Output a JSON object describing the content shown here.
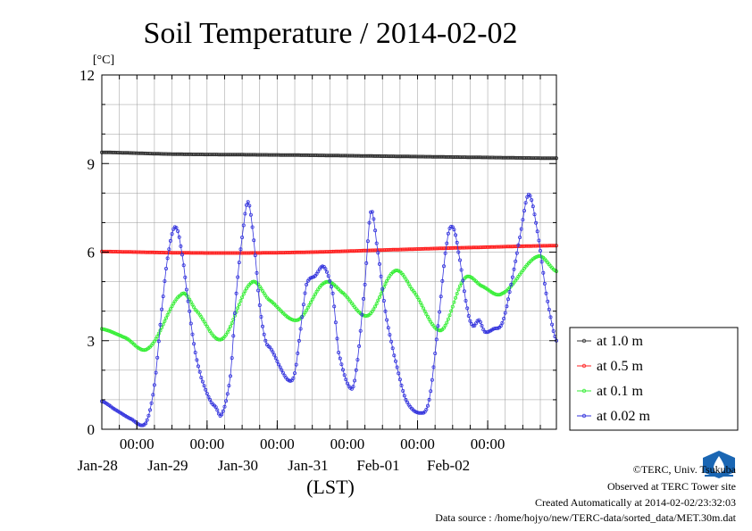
{
  "chart_data": {
    "type": "line",
    "title": "Soil Temperature / 2014-02-02",
    "xlabel": "(LST)",
    "ylabel": "[°C]",
    "ylim": [
      0,
      12
    ],
    "yticks": [
      "0",
      "3",
      "6",
      "9",
      "12"
    ],
    "xlim": [
      "2014-01-27 12:00",
      "2014-02-02 23:30"
    ],
    "xticks": [
      {
        "time": "2014-01-28 00:00",
        "label": "00:00",
        "date": "Jan-28"
      },
      {
        "time": "2014-01-29 00:00",
        "label": "00:00",
        "date": "Jan-29"
      },
      {
        "time": "2014-01-30 00:00",
        "label": "00:00",
        "date": "Jan-30"
      },
      {
        "time": "2014-01-31 00:00",
        "label": "00:00",
        "date": "Jan-31"
      },
      {
        "time": "2014-02-01 00:00",
        "label": "00:00",
        "date": "Feb-01"
      },
      {
        "time": "2014-02-02 00:00",
        "label": "00:00",
        "date": "Feb-02"
      }
    ],
    "grid": true,
    "legend_position": "right",
    "series": [
      {
        "name": "at 1.0 m",
        "color": "#333333",
        "points": [
          [
            "2014-01-27 12:00",
            9.38
          ],
          [
            "2014-01-28 12:00",
            9.32
          ],
          [
            "2014-01-29 12:00",
            9.3
          ],
          [
            "2014-01-30 12:00",
            9.28
          ],
          [
            "2014-01-31 12:00",
            9.25
          ],
          [
            "2014-02-01 12:00",
            9.22
          ],
          [
            "2014-02-02 23:30",
            9.18
          ]
        ]
      },
      {
        "name": "at 0.5 m",
        "color": "#ff2020",
        "points": [
          [
            "2014-01-27 12:00",
            6.02
          ],
          [
            "2014-01-28 12:00",
            5.98
          ],
          [
            "2014-01-29 12:00",
            5.97
          ],
          [
            "2014-01-30 12:00",
            6.0
          ],
          [
            "2014-01-31 12:00",
            6.07
          ],
          [
            "2014-02-01 12:00",
            6.14
          ],
          [
            "2014-02-02 23:30",
            6.22
          ]
        ]
      },
      {
        "name": "at 0.1 m",
        "color": "#33ee33",
        "points": [
          [
            "2014-01-27 12:00",
            3.4
          ],
          [
            "2014-01-27 20:00",
            3.1
          ],
          [
            "2014-01-28 04:00",
            2.75
          ],
          [
            "2014-01-28 15:00",
            4.55
          ],
          [
            "2014-01-28 20:00",
            4.05
          ],
          [
            "2014-01-29 05:00",
            3.05
          ],
          [
            "2014-01-29 15:00",
            4.95
          ],
          [
            "2014-01-29 21:00",
            4.4
          ],
          [
            "2014-01-30 07:00",
            3.7
          ],
          [
            "2014-01-30 16:00",
            4.95
          ],
          [
            "2014-01-30 22:00",
            4.65
          ],
          [
            "2014-01-31 07:00",
            3.85
          ],
          [
            "2014-01-31 16:00",
            5.35
          ],
          [
            "2014-01-31 22:00",
            4.75
          ],
          [
            "2014-02-01 08:00",
            3.35
          ],
          [
            "2014-02-01 16:00",
            5.1
          ],
          [
            "2014-02-01 22:00",
            4.85
          ],
          [
            "2014-02-02 05:00",
            4.6
          ],
          [
            "2014-02-02 17:00",
            5.85
          ],
          [
            "2014-02-02 23:30",
            5.35
          ]
        ]
      },
      {
        "name": "at 0.02 m",
        "color": "#3333dd",
        "points": [
          [
            "2014-01-27 12:00",
            0.95
          ],
          [
            "2014-01-27 16:00",
            0.7
          ],
          [
            "2014-01-27 22:00",
            0.35
          ],
          [
            "2014-01-28 03:00",
            0.2
          ],
          [
            "2014-01-28 06:00",
            1.5
          ],
          [
            "2014-01-28 09:00",
            4.5
          ],
          [
            "2014-01-28 11:00",
            6.1
          ],
          [
            "2014-01-28 13:00",
            6.85
          ],
          [
            "2014-01-28 15:00",
            6.2
          ],
          [
            "2014-01-28 18:00",
            4.0
          ],
          [
            "2014-01-28 20:00",
            2.6
          ],
          [
            "2014-01-28 22:00",
            1.75
          ],
          [
            "2014-01-29 01:00",
            1.0
          ],
          [
            "2014-01-29 03:00",
            0.75
          ],
          [
            "2014-01-29 05:00",
            0.5
          ],
          [
            "2014-01-29 08:00",
            1.8
          ],
          [
            "2014-01-29 10:00",
            4.6
          ],
          [
            "2014-01-29 12:00",
            6.5
          ],
          [
            "2014-01-29 14:00",
            7.7
          ],
          [
            "2014-01-29 16:00",
            6.4
          ],
          [
            "2014-01-29 18:00",
            4.2
          ],
          [
            "2014-01-29 20:00",
            3.0
          ],
          [
            "2014-01-29 22:00",
            2.7
          ],
          [
            "2014-01-30 01:00",
            2.1
          ],
          [
            "2014-01-30 04:00",
            1.65
          ],
          [
            "2014-01-30 06:00",
            1.9
          ],
          [
            "2014-01-30 08:00",
            3.4
          ],
          [
            "2014-01-30 10:00",
            4.9
          ],
          [
            "2014-01-30 13:00",
            5.2
          ],
          [
            "2014-01-30 16:00",
            5.5
          ],
          [
            "2014-01-30 19:00",
            4.6
          ],
          [
            "2014-01-30 21:00",
            2.6
          ],
          [
            "2014-01-31 01:00",
            1.4
          ],
          [
            "2014-01-31 03:00",
            2.0
          ],
          [
            "2014-01-31 06:00",
            4.9
          ],
          [
            "2014-01-31 08:00",
            7.35
          ],
          [
            "2014-01-31 10:00",
            6.3
          ],
          [
            "2014-01-31 13:00",
            4.0
          ],
          [
            "2014-01-31 16:00",
            2.5
          ],
          [
            "2014-01-31 20:00",
            1.0
          ],
          [
            "2014-02-01 01:00",
            0.55
          ],
          [
            "2014-02-01 04:00",
            1.0
          ],
          [
            "2014-02-01 07:00",
            3.5
          ],
          [
            "2014-02-01 10:00",
            6.3
          ],
          [
            "2014-02-01 12:00",
            6.85
          ],
          [
            "2014-02-01 14:00",
            6.0
          ],
          [
            "2014-02-01 17:00",
            4.1
          ],
          [
            "2014-02-01 19:00",
            3.5
          ],
          [
            "2014-02-01 21:00",
            3.7
          ],
          [
            "2014-02-01 23:00",
            3.3
          ],
          [
            "2014-02-02 02:00",
            3.4
          ],
          [
            "2014-02-02 05:00",
            3.6
          ],
          [
            "2014-02-02 08:00",
            4.9
          ],
          [
            "2014-02-02 11:00",
            6.5
          ],
          [
            "2014-02-02 14:00",
            7.95
          ],
          [
            "2014-02-02 17:00",
            6.7
          ],
          [
            "2014-02-02 20:00",
            4.6
          ],
          [
            "2014-02-02 23:30",
            3.0
          ]
        ]
      }
    ]
  },
  "credits": {
    "copyright": "©TERC, Univ. Tsukuba",
    "observed": "Observed at TERC Tower site",
    "created": "Created Automatically at 2014-02-02/23:32:03",
    "source": "Data source : /home/hojyo/new/TERC-data/sorted_data/MET.30m.dat",
    "logo_text": "TERC"
  }
}
